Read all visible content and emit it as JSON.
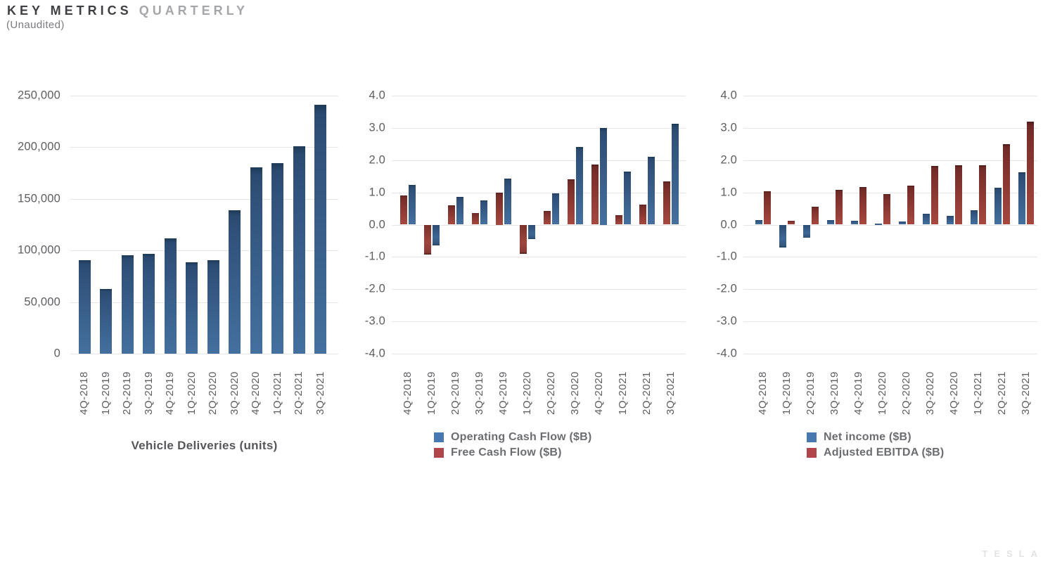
{
  "header": {
    "title_main": "KEY METRICS",
    "title_accent": "QUARTERLY",
    "subtitle": "(Unaudited)"
  },
  "footer": {
    "logo": "TESLA"
  },
  "colors": {
    "legend_blue": "#4878b0",
    "legend_red": "#b0464b",
    "gridline": "#e5e5e6",
    "title_dark": "#3f4043",
    "title_gray": "#a5a6a9",
    "axis_text": "#5d5e61"
  },
  "chart_data": [
    {
      "type": "bar",
      "title": "Vehicle Deliveries (units)",
      "categories": [
        "4Q-2018",
        "1Q-2019",
        "2Q-2019",
        "3Q-2019",
        "4Q-2019",
        "1Q-2020",
        "2Q-2020",
        "3Q-2020",
        "4Q-2020",
        "1Q-2021",
        "2Q-2021",
        "3Q-2021"
      ],
      "series": [
        {
          "name": "Vehicle Deliveries (units)",
          "color_role": "blue",
          "color": "#35597f",
          "values": [
            90700,
            63000,
            95200,
            97000,
            112000,
            88400,
            90650,
            139300,
            180570,
            184800,
            201250,
            241300
          ]
        }
      ],
      "bar_order": [
        0
      ],
      "y_axis": {
        "min": 0,
        "max": 250000,
        "step": 50000,
        "grid": true,
        "tick_labels": [
          "250,000",
          "200,000",
          "150,000",
          "100,000",
          "50,000",
          "0"
        ]
      },
      "legend": null
    },
    {
      "type": "bar",
      "title": null,
      "categories": [
        "4Q-2018",
        "1Q-2019",
        "2Q-2019",
        "3Q-2019",
        "4Q-2019",
        "1Q-2020",
        "2Q-2020",
        "3Q-2020",
        "4Q-2020",
        "1Q-2021",
        "2Q-2021",
        "3Q-2021"
      ],
      "series": [
        {
          "name": "Operating Cash Flow ($B)",
          "color_role": "blue",
          "color": "#4878b0",
          "values": [
            1.23,
            -0.64,
            0.86,
            0.76,
            1.42,
            -0.44,
            0.96,
            2.4,
            3.0,
            1.64,
            2.1,
            3.13
          ]
        },
        {
          "name": "Free Cash Flow ($B)",
          "color_role": "red",
          "color": "#b0464b",
          "values": [
            0.91,
            -0.92,
            0.61,
            0.37,
            1.0,
            -0.9,
            0.42,
            1.4,
            1.87,
            0.29,
            0.62,
            1.33
          ]
        }
      ],
      "bar_order": [
        1,
        0
      ],
      "y_axis": {
        "min": -4.0,
        "max": 4.0,
        "step": 1.0,
        "grid": true,
        "tick_labels": [
          "4.0",
          "3.0",
          "2.0",
          "1.0",
          "0.0",
          "-1.0",
          "-2.0",
          "-3.0",
          "-4.0"
        ]
      },
      "legend": {
        "position": "bottom",
        "entries": [
          {
            "label": "Operating Cash Flow ($B)",
            "color": "#4878b0"
          },
          {
            "label": "Free Cash Flow ($B)",
            "color": "#b0464b"
          }
        ]
      }
    },
    {
      "type": "bar",
      "title": null,
      "categories": [
        "4Q-2018",
        "1Q-2019",
        "2Q-2019",
        "3Q-2019",
        "4Q-2019",
        "1Q-2020",
        "2Q-2020",
        "3Q-2020",
        "4Q-2020",
        "1Q-2021",
        "2Q-2021",
        "3Q-2021"
      ],
      "series": [
        {
          "name": "Net income ($B)",
          "color_role": "blue",
          "color": "#4878b0",
          "values": [
            0.14,
            -0.7,
            -0.41,
            0.14,
            0.11,
            0.02,
            0.1,
            0.33,
            0.27,
            0.44,
            1.14,
            1.62
          ]
        },
        {
          "name": "Adjusted EBITDA ($B)",
          "color_role": "red",
          "color": "#b0464b",
          "values": [
            1.03,
            0.11,
            0.55,
            1.08,
            1.17,
            0.95,
            1.21,
            1.81,
            1.85,
            1.84,
            2.49,
            3.2
          ]
        }
      ],
      "bar_order": [
        0,
        1
      ],
      "y_axis": {
        "min": -4.0,
        "max": 4.0,
        "step": 1.0,
        "grid": true,
        "tick_labels": [
          "4.0",
          "3.0",
          "2.0",
          "1.0",
          "0.0",
          "-1.0",
          "-2.0",
          "-3.0",
          "-4.0"
        ]
      },
      "legend": {
        "position": "bottom",
        "entries": [
          {
            "label": "Net income ($B)",
            "color": "#4878b0"
          },
          {
            "label": "Adjusted EBITDA ($B)",
            "color": "#b0464b"
          }
        ]
      }
    }
  ]
}
